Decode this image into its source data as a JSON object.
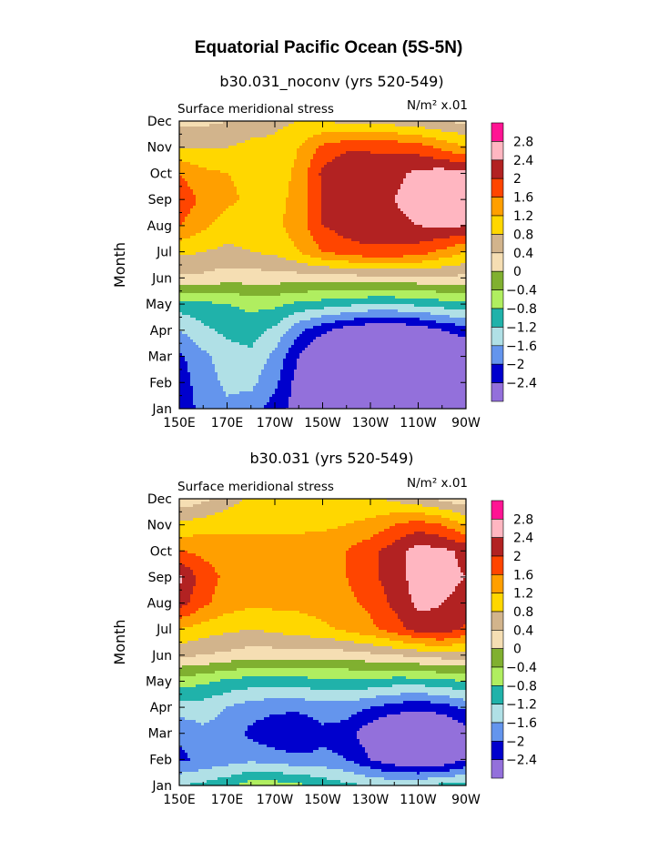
{
  "figure_title": "Equatorial Pacific Ocean (5S-5N)",
  "chart_data": [
    {
      "type": "heatmap",
      "title": "b30.031_noconv (yrs 520-549)",
      "subtitle_left": "Surface meridional stress",
      "units": "N/m² x.01",
      "ylabel": "Month",
      "x_ticks": [
        "150E",
        "170E",
        "170W",
        "150W",
        "130W",
        "110W",
        "90W"
      ],
      "y_ticks": [
        "Jan",
        "Feb",
        "Mar",
        "Apr",
        "May",
        "Jun",
        "Jul",
        "Aug",
        "Sep",
        "Oct",
        "Nov",
        "Dec"
      ],
      "xlim": [
        150,
        270
      ],
      "contour_levels": [
        "2.8",
        "2.4",
        "2",
        "1.6",
        "1.2",
        "0.8",
        "0.4",
        "0",
        "-0.4",
        "-0.8",
        "-1.2",
        "-1.6",
        "-2",
        "-2.4",
        "-2.8"
      ],
      "colors": [
        "#ff1493",
        "#ffb6c1",
        "#b22222",
        "#ff4500",
        "#ff9f00",
        "#ffd700",
        "#d2b48c",
        "#f5deb3",
        "#80b030",
        "#b0ee60",
        "#20b2aa",
        "#b0e0e6",
        "#6495ed",
        "#0000cd",
        "#9370db"
      ],
      "grid": [
        [
          -2.2,
          -1.9,
          -1.7,
          -1.8,
          -2.2,
          -2.6,
          -2.9,
          -3.1,
          -3.2,
          -3.3,
          -3.3,
          -3.2,
          -2.9
        ],
        [
          -2.2,
          -1.8,
          -1.5,
          -1.5,
          -1.9,
          -2.6,
          -3.0,
          -3.2,
          -3.3,
          -3.3,
          -3.3,
          -3.2,
          -3.0
        ],
        [
          -2.1,
          -1.7,
          -1.4,
          -1.3,
          -1.7,
          -2.4,
          -3.0,
          -3.2,
          -3.3,
          -3.3,
          -3.3,
          -3.1,
          -2.9
        ],
        [
          -1.6,
          -1.3,
          -1.1,
          -1.0,
          -1.3,
          -1.9,
          -2.3,
          -2.6,
          -2.8,
          -2.8,
          -2.7,
          -2.4,
          -2.2
        ],
        [
          -1.0,
          -0.9,
          -0.8,
          -0.7,
          -0.7,
          -0.9,
          -1.0,
          -1.1,
          -1.2,
          -1.2,
          -1.1,
          -1.0,
          -0.9
        ],
        [
          0.3,
          0.3,
          0.2,
          0.2,
          0.2,
          0.2,
          0.2,
          0.2,
          0.3,
          0.3,
          0.3,
          0.3,
          0.3
        ],
        [
          0.9,
          0.8,
          0.7,
          0.8,
          0.9,
          1.2,
          1.6,
          1.8,
          1.9,
          1.9,
          1.8,
          1.5,
          1.2
        ],
        [
          1.6,
          1.3,
          1.0,
          1.0,
          1.1,
          1.4,
          2.0,
          2.2,
          2.3,
          2.3,
          2.4,
          2.5,
          2.4
        ],
        [
          1.9,
          1.5,
          1.3,
          1.1,
          1.1,
          1.3,
          2.0,
          2.3,
          2.3,
          2.4,
          2.6,
          2.6,
          2.5
        ],
        [
          1.6,
          1.3,
          1.2,
          1.1,
          1.0,
          1.3,
          2.1,
          2.4,
          2.4,
          2.3,
          2.5,
          2.6,
          2.5
        ],
        [
          0.8,
          0.8,
          0.8,
          0.9,
          0.9,
          1.2,
          1.7,
          1.9,
          1.9,
          1.9,
          1.8,
          1.5,
          1.2
        ],
        [
          0.3,
          0.3,
          0.4,
          0.6,
          0.7,
          0.8,
          0.8,
          0.7,
          0.7,
          0.6,
          0.5,
          0.4,
          0.3
        ]
      ]
    },
    {
      "type": "heatmap",
      "title": "b30.031 (yrs 520-549)",
      "subtitle_left": "Surface meridional stress",
      "units": "N/m² x.01",
      "ylabel": "Month",
      "x_ticks": [
        "150E",
        "170E",
        "170W",
        "150W",
        "130W",
        "110W",
        "90W"
      ],
      "y_ticks": [
        "Jan",
        "Feb",
        "Mar",
        "Apr",
        "May",
        "Jun",
        "Jul",
        "Aug",
        "Sep",
        "Oct",
        "Nov",
        "Dec"
      ],
      "xlim": [
        150,
        270
      ],
      "contour_levels": [
        "2.8",
        "2.4",
        "2",
        "1.6",
        "1.2",
        "0.8",
        "0.4",
        "0",
        "-0.4",
        "-0.8",
        "-1.2",
        "-1.6",
        "-2",
        "-2.4",
        "-2.8"
      ],
      "colors": [
        "#ff1493",
        "#ffb6c1",
        "#b22222",
        "#ff4500",
        "#ff9f00",
        "#ffd700",
        "#d2b48c",
        "#f5deb3",
        "#80b030",
        "#b0ee60",
        "#20b2aa",
        "#b0e0e6",
        "#6495ed",
        "#0000cd",
        "#9370db"
      ],
      "grid": [
        [
          -1.2,
          -1.1,
          -0.9,
          -0.6,
          -0.6,
          -0.7,
          -0.9,
          -1.1,
          -1.2,
          -1.3,
          -1.2,
          -1.1,
          -1.0
        ],
        [
          -2.1,
          -1.9,
          -1.8,
          -1.7,
          -1.8,
          -1.9,
          -1.9,
          -2.0,
          -2.4,
          -2.7,
          -2.9,
          -2.8,
          -2.4
        ],
        [
          -1.9,
          -1.7,
          -1.8,
          -2.1,
          -2.3,
          -2.4,
          -2.1,
          -2.2,
          -2.7,
          -3.0,
          -3.1,
          -3.0,
          -2.6
        ],
        [
          -1.4,
          -1.4,
          -1.6,
          -1.8,
          -1.9,
          -1.9,
          -1.8,
          -1.8,
          -2.0,
          -2.2,
          -2.3,
          -2.2,
          -1.9
        ],
        [
          -0.6,
          -0.7,
          -0.9,
          -1.0,
          -1.0,
          -1.0,
          -0.9,
          -0.9,
          -0.9,
          -1.0,
          -1.0,
          -0.9,
          -0.8
        ],
        [
          0.5,
          0.4,
          0.3,
          0.2,
          0.2,
          0.2,
          0.2,
          0.2,
          0.3,
          0.4,
          0.5,
          0.6,
          0.6
        ],
        [
          1.2,
          1.0,
          0.9,
          0.8,
          0.9,
          1.0,
          1.1,
          1.3,
          1.5,
          1.8,
          2.2,
          2.3,
          1.9
        ],
        [
          2.2,
          1.7,
          1.4,
          1.3,
          1.3,
          1.3,
          1.4,
          1.5,
          1.7,
          2.1,
          2.5,
          2.4,
          2.3
        ],
        [
          2.5,
          1.8,
          1.5,
          1.4,
          1.4,
          1.4,
          1.5,
          1.6,
          1.9,
          2.2,
          2.6,
          2.5,
          2.4
        ],
        [
          1.6,
          1.5,
          1.4,
          1.4,
          1.4,
          1.4,
          1.5,
          1.6,
          1.9,
          2.2,
          2.6,
          2.5,
          2.3
        ],
        [
          0.9,
          1.0,
          1.1,
          1.1,
          1.1,
          1.1,
          1.1,
          1.2,
          1.3,
          1.6,
          1.8,
          1.6,
          1.2
        ],
        [
          0.1,
          0.3,
          0.6,
          0.9,
          1.0,
          1.0,
          1.0,
          1.0,
          0.9,
          0.7,
          0.5,
          0.3,
          0.1
        ]
      ]
    }
  ]
}
